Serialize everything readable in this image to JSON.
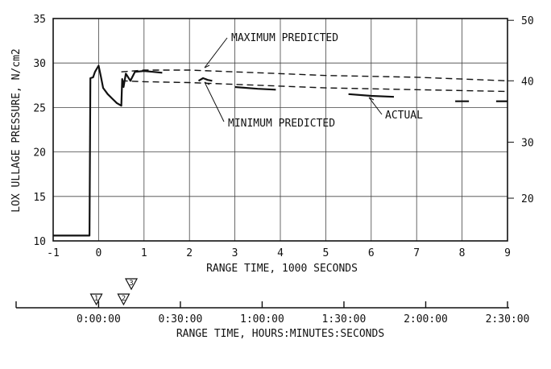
{
  "chart_data": {
    "type": "line",
    "xlabel": "RANGE TIME, 1000 SECONDS",
    "ylabel": "LOX ULLAGE PRESSURE, N/cm2",
    "xlim": [
      -1,
      9
    ],
    "ylim": [
      10,
      35
    ],
    "x_ticks": [
      -1,
      0,
      1,
      2,
      3,
      4,
      5,
      6,
      7,
      8,
      9
    ],
    "y_ticks": [
      10,
      15,
      20,
      25,
      30,
      35
    ],
    "grid": true,
    "right_axis": {
      "ticks": [
        20,
        30,
        40,
        50
      ],
      "tick_positions_in_left_units": [
        14.8,
        21.1,
        28.0,
        34.8
      ]
    },
    "secondary_axis": {
      "label": "RANGE TIME, HOURS:MINUTES:SECONDS",
      "ticks": [
        "0:00:00",
        "0:30:00",
        "1:00:00",
        "1:30:00",
        "2:00:00",
        "2:30:00"
      ],
      "tick_positions_in_kiloseconds": [
        0,
        1.8,
        3.6,
        5.4,
        7.2,
        9.0
      ],
      "event_markers": [
        {
          "label": "1",
          "x": -0.05
        },
        {
          "label": "2",
          "x": 0.55
        },
        {
          "label": "3",
          "x": 0.72
        }
      ]
    },
    "annotations": [
      {
        "text": "MAXIMUM PREDICTED",
        "x": 2.4,
        "y": 29.5
      },
      {
        "text": "MINIMUM PREDICTED",
        "x": 2.3,
        "y": 28.2
      },
      {
        "text": "ACTUAL",
        "x": 6.0,
        "y": 26.2
      }
    ],
    "series": [
      {
        "style": "dashed",
        "x": [
          0.5,
          1.0,
          2.0,
          3.0,
          4.0,
          5.0,
          6.0,
          7.0,
          8.0,
          9.0
        ],
        "y": [
          29.0,
          29.2,
          29.2,
          29.0,
          28.8,
          28.6,
          28.5,
          28.4,
          28.2,
          28.0
        ]
      },
      {
        "style": "dashed",
        "x": [
          0.5,
          1.0,
          2.0,
          3.0,
          4.0,
          5.0,
          6.0,
          7.0,
          8.0,
          9.0
        ],
        "y": [
          28.0,
          27.9,
          27.8,
          27.6,
          27.4,
          27.2,
          27.1,
          27.0,
          26.9,
          26.8
        ]
      },
      {
        "style": "solid",
        "segments": [
          {
            "x": [
              -1.0,
              -0.2,
              -0.18,
              -0.12,
              -0.08,
              0.0,
              0.05,
              0.1,
              0.2,
              0.3,
              0.4,
              0.5,
              0.52,
              0.55,
              0.6,
              0.7,
              0.8,
              1.0,
              1.2,
              1.4
            ],
            "y": [
              10.6,
              10.6,
              28.3,
              28.4,
              29.0,
              29.7,
              28.5,
              27.2,
              26.5,
              26.0,
              25.5,
              25.2,
              28.2,
              27.3,
              28.8,
              28.0,
              29.0,
              29.1,
              29.0,
              28.9
            ]
          },
          {
            "x": [
              2.2,
              2.3,
              2.4,
              2.5
            ],
            "y": [
              28.0,
              28.3,
              28.1,
              28.0
            ]
          },
          {
            "x": [
              3.0,
              3.5,
              3.9
            ],
            "y": [
              27.3,
              27.1,
              27.0
            ]
          },
          {
            "x": [
              5.5,
              6.0,
              6.5
            ],
            "y": [
              26.5,
              26.3,
              26.2
            ]
          },
          {
            "x": [
              7.85,
              8.15
            ],
            "y": [
              25.7,
              25.7
            ]
          },
          {
            "x": [
              8.75,
              9.0
            ],
            "y": [
              25.7,
              25.7
            ]
          }
        ]
      }
    ]
  }
}
